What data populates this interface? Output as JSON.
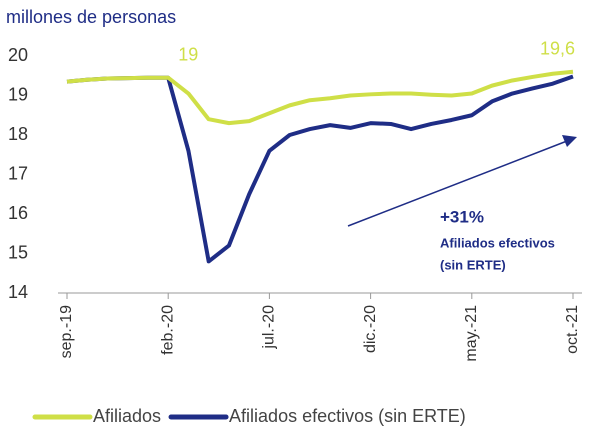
{
  "chart_data": {
    "type": "line",
    "y_label": "millones de personas",
    "categories": [
      "sep.-19",
      null,
      null,
      null,
      null,
      "feb.-20",
      null,
      null,
      null,
      null,
      "jul.-20",
      null,
      null,
      null,
      null,
      "dic.-20",
      null,
      null,
      null,
      null,
      "may.-21",
      null,
      null,
      null,
      null,
      "oct.-21"
    ],
    "series": [
      {
        "name": "Afiliados",
        "color": "#cfdf47",
        "values": [
          19.35,
          19.4,
          19.43,
          19.44,
          19.45,
          19.45,
          19.05,
          18.4,
          18.3,
          18.35,
          18.55,
          18.75,
          18.88,
          18.93,
          19.0,
          19.03,
          19.05,
          19.05,
          19.02,
          19.0,
          19.05,
          19.25,
          19.38,
          19.47,
          19.55,
          19.6
        ],
        "value_labels": [
          null,
          null,
          null,
          null,
          null,
          "19",
          null,
          null,
          null,
          null,
          null,
          null,
          null,
          null,
          null,
          null,
          null,
          null,
          null,
          null,
          null,
          null,
          null,
          null,
          null,
          "19,6"
        ]
      },
      {
        "name": "Afiliados efectivos (sin ERTE)",
        "color": "#1f2d86",
        "values": [
          19.35,
          19.4,
          19.43,
          19.44,
          19.45,
          19.45,
          17.6,
          14.8,
          15.2,
          16.5,
          17.6,
          18.0,
          18.15,
          18.25,
          18.18,
          18.3,
          18.28,
          18.15,
          18.28,
          18.38,
          18.5,
          18.85,
          19.05,
          19.18,
          19.3,
          19.48
        ]
      }
    ],
    "annotations": [
      "+31%",
      "Afiliados efectivos",
      "(sin ERTE)"
    ],
    "ylim": [
      14,
      20
    ],
    "yticks": [
      14,
      15,
      16,
      17,
      18,
      19,
      20
    ],
    "grid": false
  }
}
